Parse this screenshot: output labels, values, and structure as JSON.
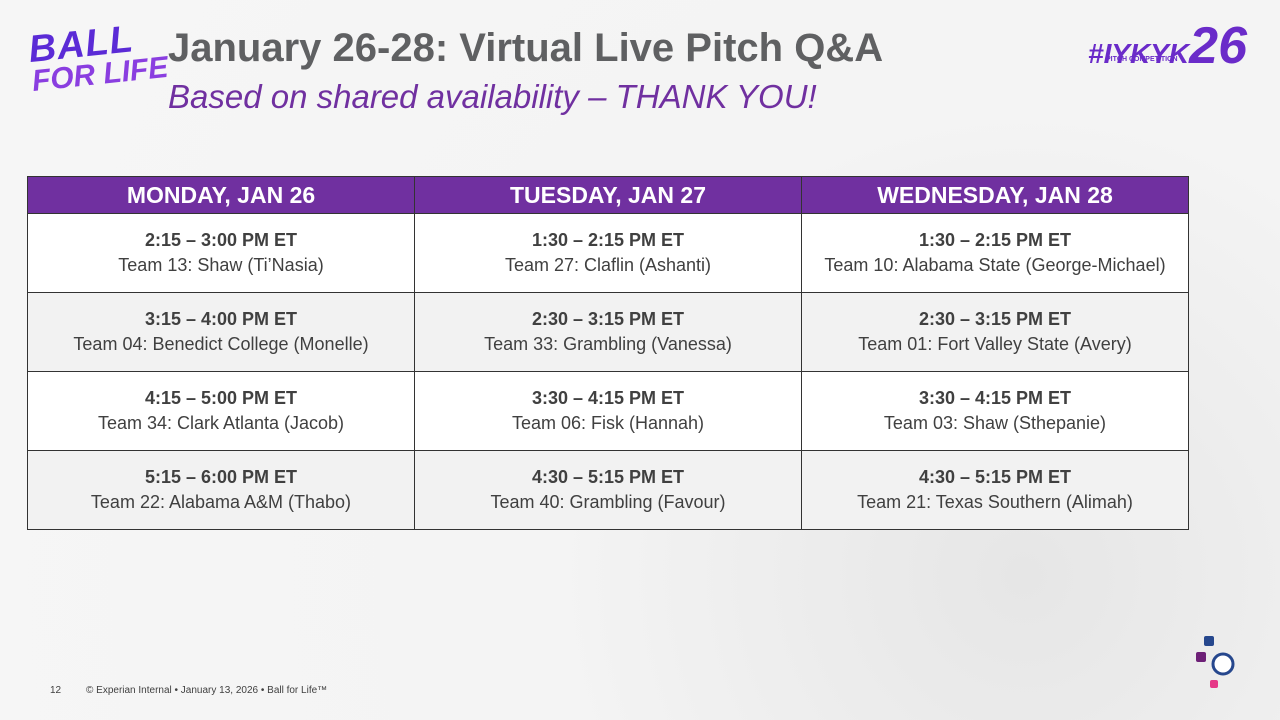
{
  "header": {
    "title": "January 26-28: Virtual Live Pitch Q&A",
    "subtitle": "Based on shared availability – THANK YOU!"
  },
  "logos": {
    "left_top": "BALL",
    "left_bottom": "FOR LIFE",
    "right_tag": "#IYKYK",
    "right_number": "26",
    "right_caption": "PITCH COMPETITION"
  },
  "table": {
    "columns": [
      "MONDAY, JAN 26",
      "TUESDAY, JAN 27",
      "WEDNESDAY, JAN 28"
    ],
    "rows": [
      [
        {
          "time": "2:15 – 3:00 PM ET",
          "team": "Team 13: Shaw (Ti’Nasia)"
        },
        {
          "time": "1:30 – 2:15 PM ET",
          "team": "Team 27: Claflin (Ashanti)"
        },
        {
          "time": "1:30 – 2:15 PM ET",
          "team": "Team 10: Alabama State (George-Michael)"
        }
      ],
      [
        {
          "time": "3:15 – 4:00 PM ET",
          "team": "Team 04: Benedict College (Monelle)"
        },
        {
          "time": "2:30 – 3:15 PM ET",
          "team": "Team 33: Grambling (Vanessa)"
        },
        {
          "time": "2:30 – 3:15 PM ET",
          "team": "Team 01: Fort Valley State (Avery)"
        }
      ],
      [
        {
          "time": "4:15 – 5:00 PM ET",
          "team": "Team 34: Clark Atlanta (Jacob)"
        },
        {
          "time": "3:30 – 4:15 PM ET",
          "team": "Team 06: Fisk (Hannah)"
        },
        {
          "time": "3:30 – 4:15 PM ET",
          "team": "Team 03: Shaw (Sthepanie)"
        }
      ],
      [
        {
          "time": "5:15 – 6:00 PM ET",
          "team": "Team 22: Alabama A&M (Thabo)"
        },
        {
          "time": "4:30 – 5:15 PM ET",
          "team": "Team 40: Grambling (Favour)"
        },
        {
          "time": "4:30 – 5:15 PM ET",
          "team": "Team 21: Texas Southern (Alimah)"
        }
      ]
    ]
  },
  "footer": {
    "page": "12",
    "text": "© Experian Internal • January 13, 2026 • Ball for Life™"
  }
}
